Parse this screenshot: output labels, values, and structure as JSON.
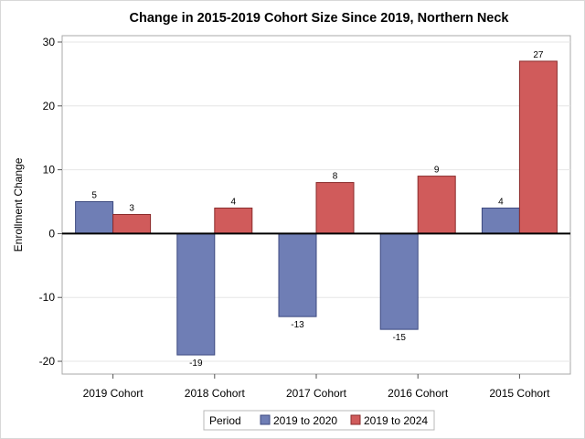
{
  "chart_data": {
    "type": "bar",
    "title": "Change in 2015-2019 Cohort Size Since 2019, Northern Neck",
    "xlabel": "",
    "ylabel": "Enrollment Change",
    "categories": [
      "2019 Cohort",
      "2018 Cohort",
      "2017 Cohort",
      "2016 Cohort",
      "2015 Cohort"
    ],
    "series": [
      {
        "name": "2019 to 2020",
        "color": "#6f7eb5",
        "values": [
          5,
          -19,
          -13,
          -15,
          4
        ]
      },
      {
        "name": "2019 to 2024",
        "color": "#d05b5b",
        "values": [
          3,
          4,
          8,
          9,
          27
        ]
      }
    ],
    "ylim": [
      -22,
      31
    ],
    "yticks": [
      -20,
      -10,
      0,
      10,
      20,
      30
    ],
    "grid": true,
    "legend": {
      "title": "Period",
      "placement": "bottom-center"
    }
  }
}
